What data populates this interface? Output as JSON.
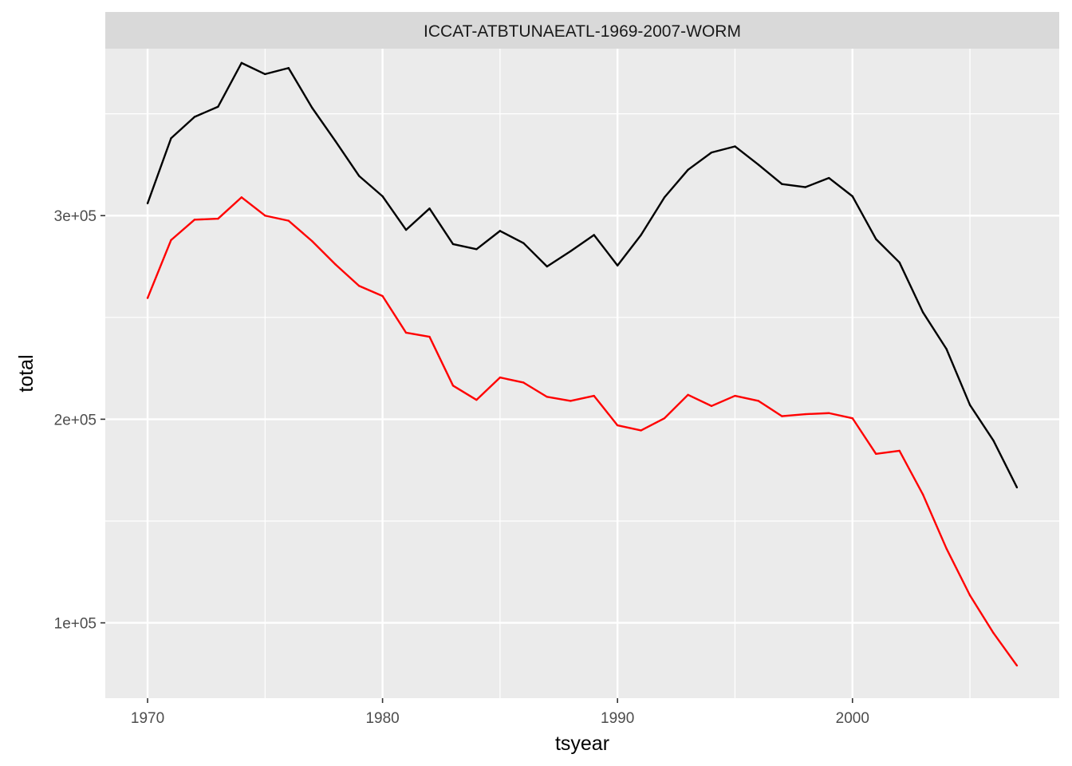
{
  "chart_data": {
    "type": "line",
    "facet_title": "ICCAT-ATBTUNAEATL-1969-2007-WORM",
    "xlabel": "tsyear",
    "ylabel": "total",
    "xlim": [
      1968.2,
      2008.8
    ],
    "ylim": [
      63000,
      382000
    ],
    "x_ticks": [
      1970,
      1980,
      1990,
      2000
    ],
    "x_tick_labels": [
      "1970",
      "1980",
      "1990",
      "2000"
    ],
    "y_ticks": [
      100000,
      200000,
      300000
    ],
    "y_tick_labels": [
      "1e+05",
      "2e+05",
      "3e+05"
    ],
    "grid": true,
    "legend": "none",
    "x": [
      1970,
      1971,
      1972,
      1973,
      1974,
      1975,
      1976,
      1977,
      1978,
      1979,
      1980,
      1981,
      1982,
      1983,
      1984,
      1985,
      1986,
      1987,
      1988,
      1989,
      1990,
      1991,
      1992,
      1993,
      1994,
      1995,
      1996,
      1997,
      1998,
      1999,
      2000,
      2001,
      2002,
      2003,
      2004,
      2005,
      2006,
      2007
    ],
    "series": [
      {
        "color": "#000000",
        "values": [
          306000,
          338000,
          348500,
          353500,
          375000,
          369500,
          372500,
          353000,
          336500,
          319500,
          309500,
          293000,
          303500,
          286000,
          283500,
          292500,
          286500,
          275000,
          282500,
          290500,
          275500,
          290500,
          309000,
          322500,
          331000,
          334000,
          325000,
          315500,
          314000,
          318500,
          309500,
          288500,
          277000,
          252500,
          234500,
          207000,
          189500,
          166500
        ]
      },
      {
        "color": "#ff0000",
        "values": [
          259500,
          288000,
          298000,
          298500,
          309000,
          300000,
          297500,
          287500,
          276000,
          265500,
          260500,
          242500,
          240500,
          216500,
          209500,
          220500,
          218000,
          211000,
          209000,
          211500,
          197000,
          194500,
          200500,
          212000,
          206500,
          211500,
          209000,
          201500,
          202500,
          203000,
          200500,
          183000,
          184500,
          163000,
          136500,
          113500,
          95000,
          79000
        ]
      }
    ]
  }
}
